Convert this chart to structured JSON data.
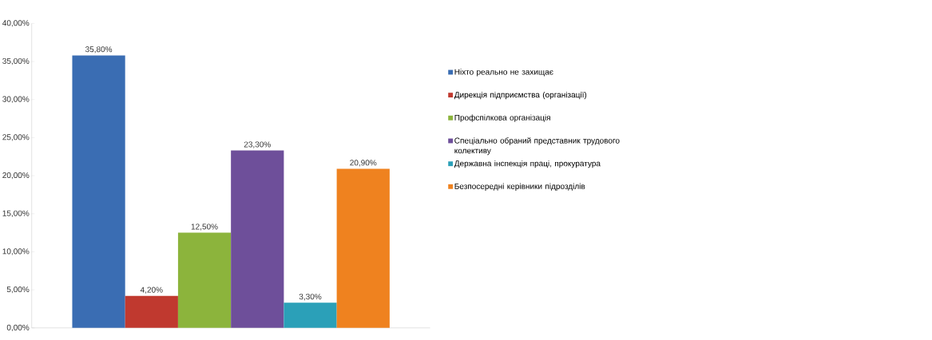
{
  "chart_data": {
    "type": "bar",
    "categories": [
      null
    ],
    "series": [
      {
        "name": "Ніхто реально не захищає",
        "color": "#3a6db3",
        "values": [
          35.8
        ],
        "value_labels": [
          "35,80%"
        ]
      },
      {
        "name": "Дирекція підприємства (організації)",
        "color": "#c0392f",
        "values": [
          4.2
        ],
        "value_labels": [
          "4,20%"
        ]
      },
      {
        "name": "Профспілкова організація",
        "color": "#8cb43c",
        "values": [
          12.5
        ],
        "value_labels": [
          "12,50%"
        ]
      },
      {
        "name": "Спеціально обраний представник трудового колективу",
        "color": "#6e4f9a",
        "values": [
          23.3
        ],
        "value_labels": [
          "23,30%"
        ]
      },
      {
        "name": "Державна інспекція праці, прокуратура",
        "color": "#2ba0b8",
        "values": [
          3.3
        ],
        "value_labels": [
          "3,30%"
        ]
      },
      {
        "name": "Безпосередні керівники підрозділів",
        "color": "#ef821f",
        "values": [
          20.9
        ],
        "value_labels": [
          "20,90%"
        ]
      }
    ],
    "ylim": [
      0,
      40
    ],
    "yticks": [
      {
        "value": 0,
        "label": "0,00%"
      },
      {
        "value": 5,
        "label": "5,00%"
      },
      {
        "value": 10,
        "label": "10,00%"
      },
      {
        "value": 15,
        "label": "15,00%"
      },
      {
        "value": 20,
        "label": "20,00%"
      },
      {
        "value": 25,
        "label": "25,00%"
      },
      {
        "value": 30,
        "label": "30,00%"
      },
      {
        "value": 35,
        "label": "35,00%"
      },
      {
        "value": 40,
        "label": "40,00%"
      }
    ],
    "grid": false,
    "legend": "right"
  }
}
